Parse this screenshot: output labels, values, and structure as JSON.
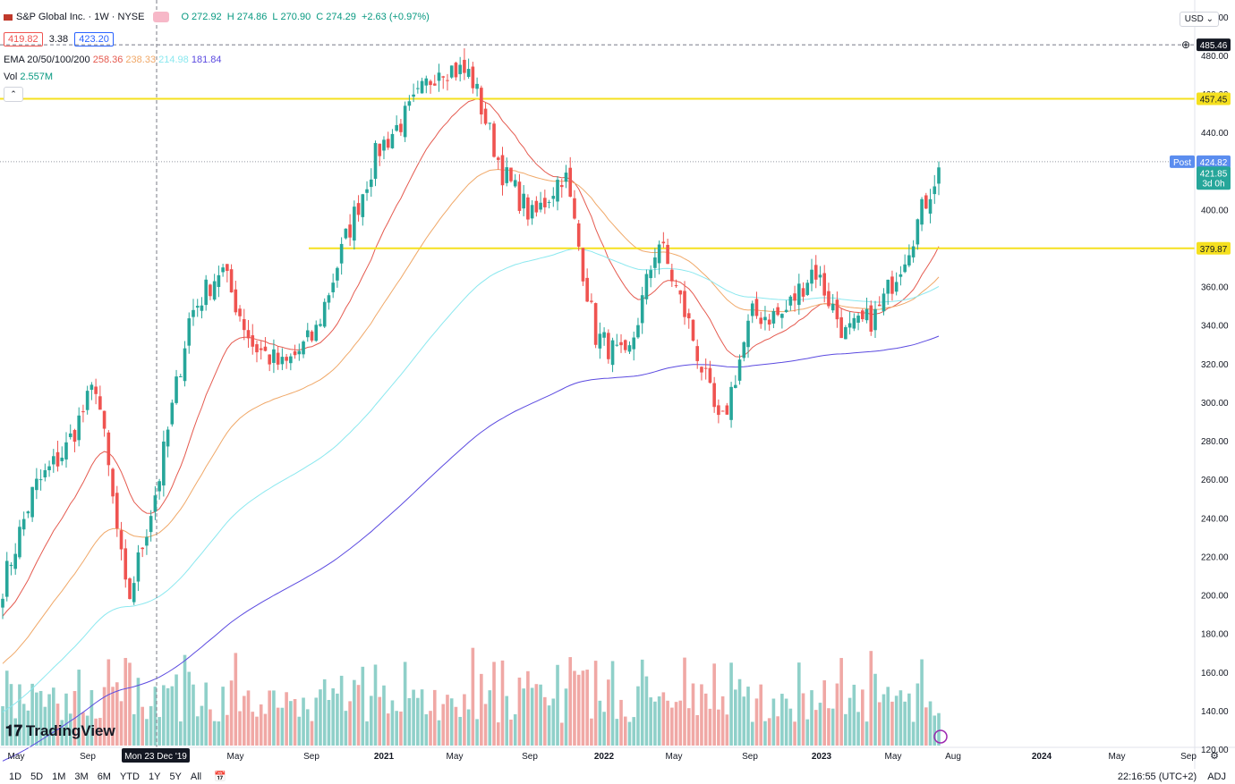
{
  "header": {
    "title": "S&P Global Inc. · 1W · NYSE",
    "ohlc": {
      "o_label": "O",
      "o": "272.92",
      "h_label": "H",
      "h": "274.86",
      "l_label": "L",
      "l": "270.90",
      "c_label": "C",
      "c": "274.29",
      "chg": "+2.63 (+0.97%)"
    },
    "bid": "419.82",
    "spread": "3.38",
    "ask": "423.20"
  },
  "indicators": {
    "ema_label": "EMA 20/50/100/200",
    "ema_values": [
      "258.36",
      "238.33",
      "214.98",
      "181.84"
    ],
    "ema_colors": [
      "#e55a4f",
      "#f0a868",
      "#8be8ef",
      "#5b4ae0"
    ],
    "vol_label": "Vol",
    "vol_value": "2.557M"
  },
  "currency": "USD",
  "price_labels": {
    "crosshair": "485.46",
    "line_upper": "457.45",
    "post_label": "Post",
    "post": "424.82",
    "last": "421.85",
    "countdown": "3d 0h",
    "line_lower": "379.87"
  },
  "crosshair_date": "Mon 23 Dec '19",
  "logo": "TradingView",
  "ranges": [
    "1D",
    "5D",
    "1M",
    "3M",
    "6M",
    "YTD",
    "1Y",
    "5Y",
    "All"
  ],
  "status": {
    "time": "22:16:55 (UTC+2)",
    "adj": "ADJ"
  },
  "colors": {
    "up": "#26a69a",
    "down": "#ef5350",
    "hline": "#f5e01f",
    "upper_vol": "#8fd0c9",
    "down_vol": "#f0a8a5"
  },
  "chart_data": {
    "type": "candlestick",
    "title": "S&P Global Inc. · 1W · NYSE",
    "y_axis": {
      "range": [
        120,
        505
      ],
      "ticks": [
        120,
        140,
        160,
        180,
        200,
        220,
        240,
        260,
        280,
        300,
        320,
        340,
        360,
        380,
        400,
        420,
        440,
        460,
        480,
        500
      ]
    },
    "x_axis": {
      "tick_labels": [
        "May",
        "Sep",
        "2021",
        "May",
        "Sep",
        "2022",
        "May",
        "Sep",
        "2023",
        "May",
        "Aug",
        "2024",
        "May",
        "Sep"
      ]
    },
    "horizontal_lines": [
      457.45,
      379.87
    ],
    "price_path_keypoints": [
      [
        "May 2019",
        205
      ],
      [
        "Sep 2019",
        255
      ],
      [
        "Jan 2020",
        275
      ],
      [
        "Feb 2020",
        310
      ],
      [
        "Mar 2020",
        195
      ],
      [
        "Apr 2020",
        260
      ],
      [
        "Jul 2020",
        345
      ],
      [
        "Sep 2020",
        370
      ],
      [
        "Oct 2020",
        330
      ],
      [
        "Dec 2020",
        318
      ],
      [
        "Jan 2021",
        335
      ],
      [
        "May 2021",
        385
      ],
      [
        "Aug 2021",
        430
      ],
      [
        "Oct 2021",
        450
      ],
      [
        "Nov 2021",
        475
      ],
      [
        "Dec 2021",
        470
      ],
      [
        "Jan 2022",
        420
      ],
      [
        "Mar 2022",
        395
      ],
      [
        "Apr 2022",
        420
      ],
      [
        "May 2022",
        335
      ],
      [
        "Jun 2022",
        320
      ],
      [
        "Aug 2022",
        385
      ],
      [
        "Sep 2022",
        340
      ],
      [
        "Oct 2022",
        285
      ],
      [
        "Nov 2022",
        345
      ],
      [
        "Dec 2022",
        345
      ],
      [
        "Feb 2023",
        370
      ],
      [
        "Mar 2023",
        335
      ],
      [
        "Apr 2023",
        345
      ],
      [
        "Jun 2023",
        380
      ],
      [
        "Jul 2023",
        421.85
      ]
    ],
    "ema_series": [
      {
        "name": "EMA 20",
        "value": 258.36
      },
      {
        "name": "EMA 50",
        "value": 238.33
      },
      {
        "name": "EMA 100",
        "value": 214.98
      },
      {
        "name": "EMA 200",
        "value": 181.84
      }
    ],
    "volume_series_name": "Vol",
    "last_volume": "2.557M"
  }
}
